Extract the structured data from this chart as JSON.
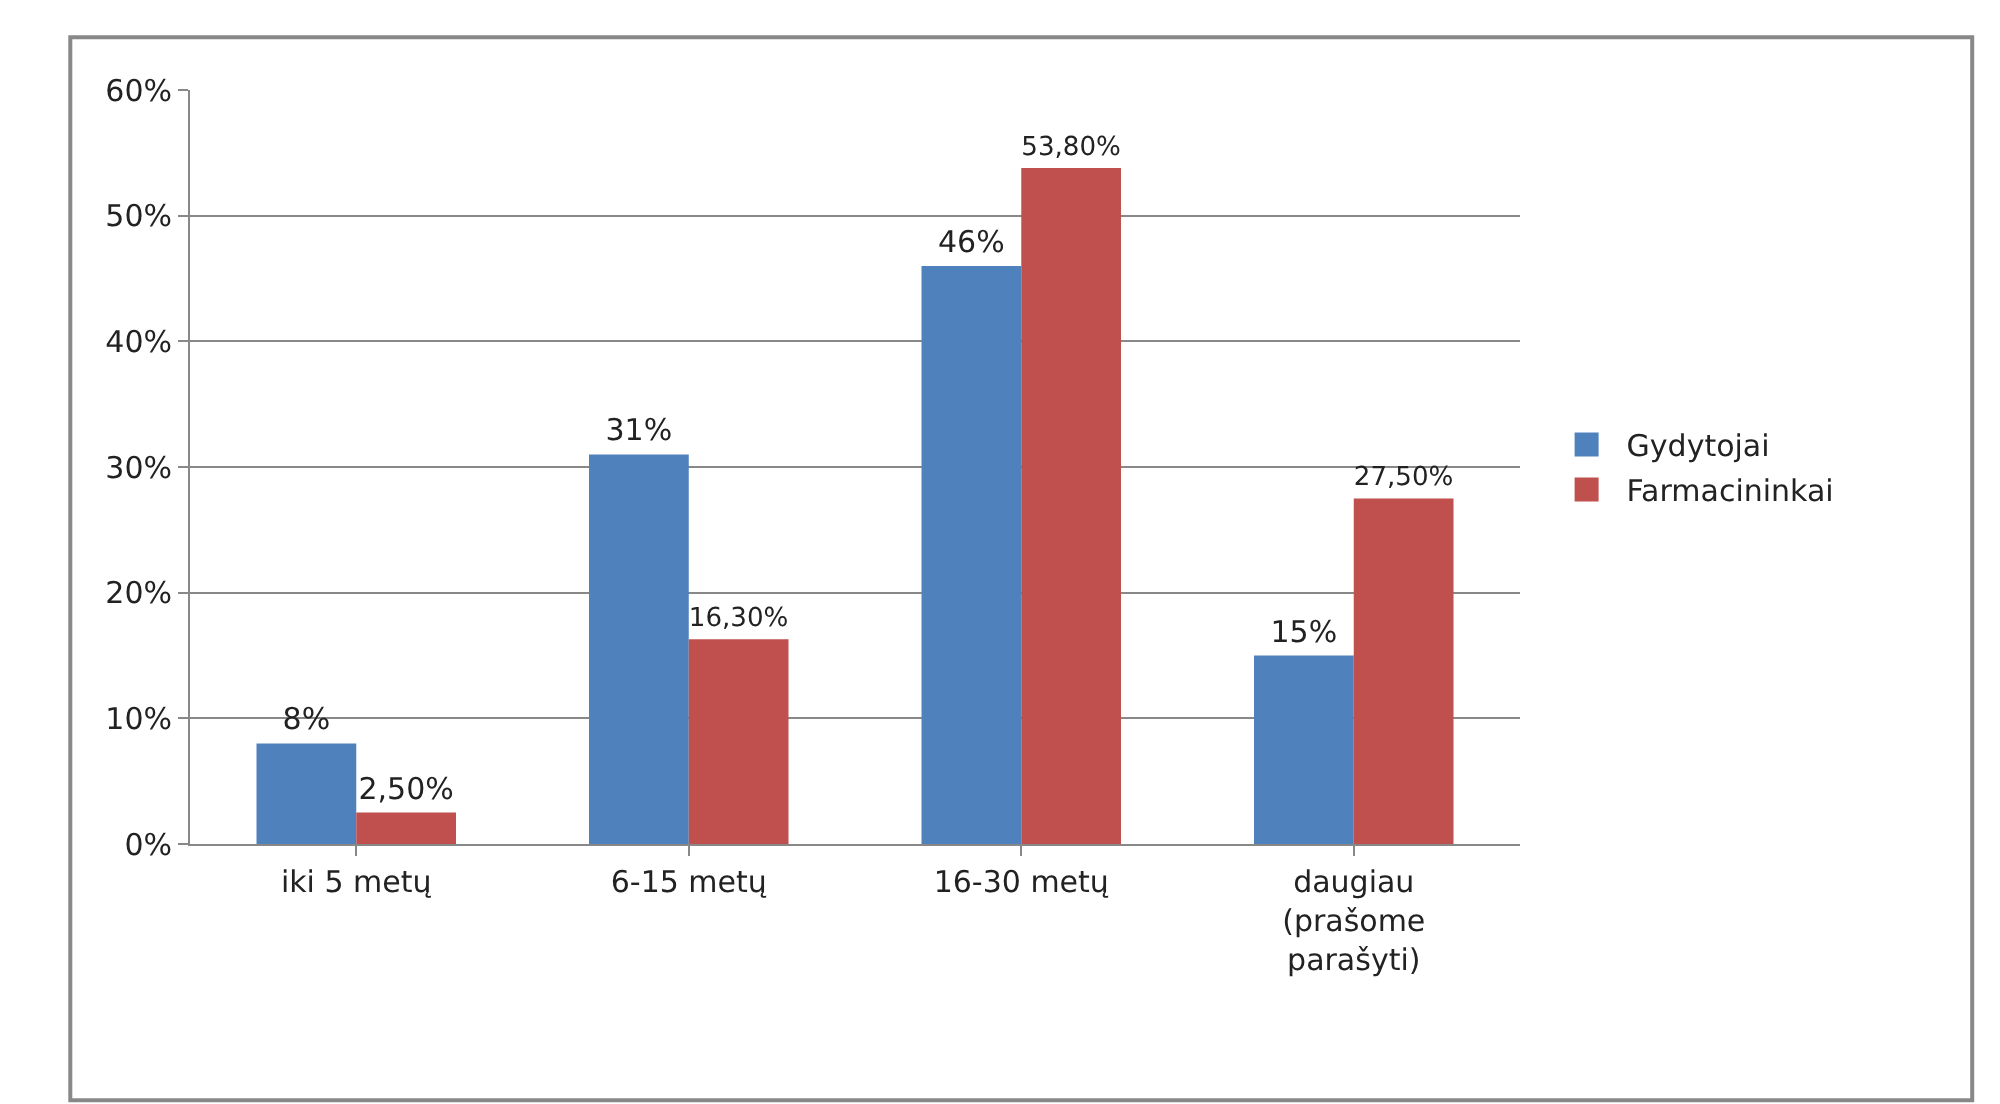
{
  "chart_data": {
    "type": "bar",
    "categories": [
      "iki 5 metų",
      "6-15 metų",
      "16-30 metų",
      "daugiau (prašome parašyti)"
    ],
    "series": [
      {
        "name": "Gydytojai",
        "color": "#4f81bd",
        "values": [
          8,
          31,
          46,
          15
        ],
        "value_labels": [
          "8%",
          "31%",
          "46%",
          "15%"
        ]
      },
      {
        "name": "Farmacininkai",
        "color": "#c0504d",
        "values": [
          2.5,
          16.3,
          53.8,
          27.5
        ],
        "value_labels": [
          "2,50%",
          "16,30%",
          "53,80%",
          "27,50%"
        ]
      }
    ],
    "ylim": [
      0,
      60
    ],
    "yticks": [
      {
        "value": 0,
        "label": "0%"
      },
      {
        "value": 10,
        "label": "10%"
      },
      {
        "value": 20,
        "label": "20%"
      },
      {
        "value": 30,
        "label": "30%"
      },
      {
        "value": 40,
        "label": "40%"
      },
      {
        "value": 50,
        "label": "50%"
      },
      {
        "value": 60,
        "label": "60%"
      }
    ],
    "grid": "y",
    "legend": "right"
  }
}
